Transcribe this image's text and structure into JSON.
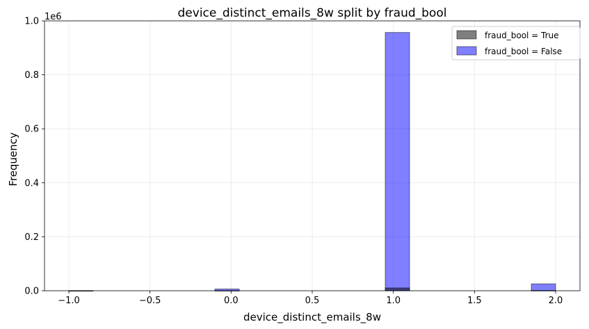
{
  "chart_data": {
    "type": "histogram",
    "title": "device_distinct_emails_8w split by fraud_bool",
    "xlabel": "device_distinct_emails_8w",
    "ylabel": "Frequency",
    "y_offset_label": "1e6",
    "xlim": [
      -1.15,
      2.15
    ],
    "ylim": [
      0,
      1.0
    ],
    "x_ticks": [
      -1.0,
      -0.5,
      0.0,
      0.5,
      1.0,
      1.5,
      2.0
    ],
    "x_tick_labels": [
      "−1.0",
      "−0.5",
      "0.0",
      "0.5",
      "1.0",
      "1.5",
      "2.0"
    ],
    "y_ticks": [
      0.0,
      0.2,
      0.4,
      0.6,
      0.8,
      1.0
    ],
    "y_tick_labels": [
      "0.0",
      "0.2",
      "0.4",
      "0.6",
      "0.8",
      "1.0"
    ],
    "grid": true,
    "legend_position": "top-right",
    "series": [
      {
        "name": "fraud_bool = True",
        "color": "#000000",
        "bins": [
          {
            "x0": -1.0,
            "x1": -0.85,
            "value": 0.0001
          },
          {
            "x0": -0.1,
            "x1": 0.05,
            "value": 0.0003
          },
          {
            "x0": 0.95,
            "x1": 1.1,
            "value": 0.0105
          },
          {
            "x0": 1.85,
            "x1": 2.0,
            "value": 0.0008
          }
        ]
      },
      {
        "name": "fraud_bool = False",
        "color": "#0000ff",
        "bins": [
          {
            "x0": -1.0,
            "x1": -0.85,
            "value": 0.0004
          },
          {
            "x0": -0.1,
            "x1": 0.05,
            "value": 0.0065
          },
          {
            "x0": 0.95,
            "x1": 1.1,
            "value": 0.957
          },
          {
            "x0": 1.85,
            "x1": 2.0,
            "value": 0.0255
          }
        ]
      }
    ]
  }
}
